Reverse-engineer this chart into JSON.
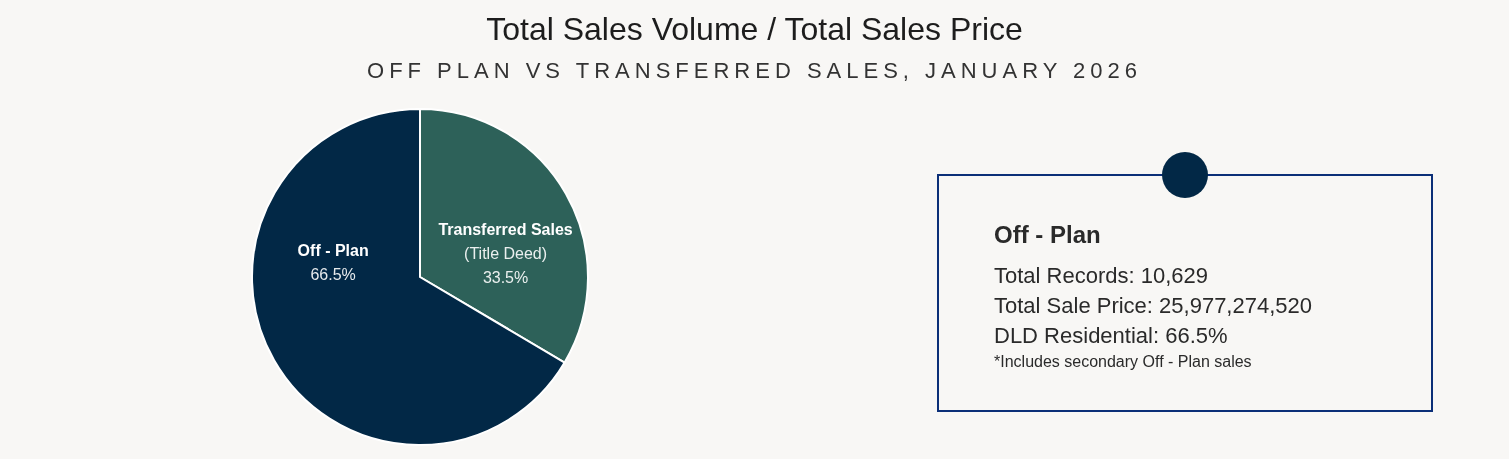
{
  "chart_data": {
    "type": "pie",
    "title": "Total Sales Volume / Total Sales Price",
    "subtitle": "OFF PLAN VS TRANSFERRED SALES, JANUARY 2026",
    "categories": [
      "Transferred Sales\n(Title Deed)",
      "Off - Plan"
    ],
    "values": [
      33.5,
      66.5
    ],
    "colors": [
      "#2d6159",
      "#022846"
    ],
    "value_labels": [
      "33.5%",
      "66.5%"
    ],
    "annotations": [
      "Off - Plan",
      "Total Records: 10,629",
      "Total Sale Price: 25,977,274,520",
      "DLD Residential: 66.5%",
      "*Includes secondary Off - Plan sales"
    ]
  }
}
